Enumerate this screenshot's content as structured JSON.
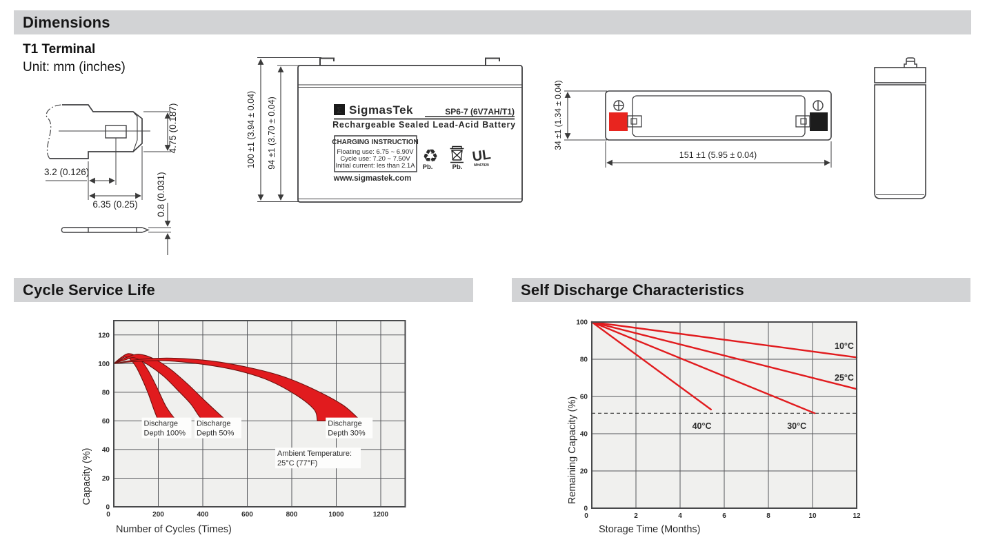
{
  "page": {
    "dimensions_title": "Dimensions",
    "terminal_type": "T1 Terminal",
    "unit_note": "Unit: mm (inches)",
    "cycle_title": "Cycle Service Life",
    "discharge_title": "Self Discharge Characteristics"
  },
  "terminal_drawing": {
    "dim_tab_width": "4.75 (0.187)",
    "dim_hole_offset": "3.2 (0.126)",
    "dim_tab_length": "6.35 (0.25)",
    "dim_tab_thickness": "0.8 (0.031)"
  },
  "front_view": {
    "dim_total_height": "100 ±1 (3.94 ± 0.04)",
    "dim_case_height": "94 ±1 (3.70 ± 0.04)",
    "brand_symbol": "Σ",
    "brand": "SigmasTek",
    "model": "SP6-7 (6V7AH/T1)",
    "battery_type": "Rechargeable Sealed Lead-Acid Battery",
    "charging_title": "CHARGING INSTRUCTION",
    "charging_line1": "Floating use: 6.75 ~ 6.90V",
    "charging_line2": "Cycle use: 7.20 ~ 7.50V",
    "charging_line3": "Initial current: les than 2.1A",
    "recycle_pb": "Pb.",
    "bin_pb": "Pb.",
    "ul_mark": "UL",
    "ul_code": "MH47929",
    "website": "www.sigmastek.com"
  },
  "top_view": {
    "dim_length": "151 ±1 (5.95 ± 0.04)",
    "dim_depth": "34 ±1 (1.34 ± 0.04)"
  },
  "chart_data": [
    {
      "type": "area",
      "title": "Cycle Service Life",
      "xlabel": "Number of Cycles (Times)",
      "ylabel": "Capacity (%)",
      "xlim": [
        0,
        1310
      ],
      "ylim": [
        0,
        130
      ],
      "xticks": [
        0,
        200,
        400,
        600,
        800,
        1000,
        1200
      ],
      "yticks": [
        0,
        20,
        40,
        60,
        80,
        100,
        120
      ],
      "grid": true,
      "legend_position": "none",
      "series": [
        {
          "name": "Discharge Depth 100%",
          "upper": [
            [
              0,
              100
            ],
            [
              35,
              104.5
            ],
            [
              70,
              107
            ],
            [
              115,
              103.5
            ],
            [
              155,
              95
            ],
            [
              195,
              83
            ],
            [
              235,
              70
            ],
            [
              280,
              60.5
            ],
            [
              290,
              60
            ]
          ],
          "lower": [
            [
              0,
              100
            ],
            [
              30,
              103
            ],
            [
              60,
              104.5
            ],
            [
              95,
              99
            ],
            [
              125,
              90
            ],
            [
              155,
              79
            ],
            [
              180,
              68
            ],
            [
              200,
              60
            ]
          ]
        },
        {
          "name": "Discharge Depth 50%",
          "upper": [
            [
              0,
              100
            ],
            [
              60,
              104.5
            ],
            [
              115,
              106.5
            ],
            [
              185,
              103
            ],
            [
              255,
              96
            ],
            [
              330,
              86
            ],
            [
              410,
              74
            ],
            [
              490,
              62.5
            ],
            [
              515,
              60
            ]
          ],
          "lower": [
            [
              0,
              100
            ],
            [
              50,
              102.5
            ],
            [
              95,
              104
            ],
            [
              160,
              98.5
            ],
            [
              225,
              91
            ],
            [
              290,
              81
            ],
            [
              345,
              72
            ],
            [
              380,
              64
            ],
            [
              400,
              60
            ]
          ]
        },
        {
          "name": "Discharge Depth 30%",
          "upper": [
            [
              0,
              100
            ],
            [
              120,
              103
            ],
            [
              260,
              103.8
            ],
            [
              430,
              102
            ],
            [
              600,
              97.5
            ],
            [
              760,
              91
            ],
            [
              900,
              82
            ],
            [
              1030,
              71
            ],
            [
              1110,
              60
            ]
          ],
          "lower": [
            [
              0,
              100
            ],
            [
              100,
              101.5
            ],
            [
              230,
              102
            ],
            [
              400,
              99.5
            ],
            [
              560,
              95
            ],
            [
              700,
              88
            ],
            [
              820,
              78
            ],
            [
              900,
              68
            ],
            [
              915,
              60
            ]
          ]
        }
      ],
      "annotations": [
        {
          "text1": "Discharge",
          "text2": "Depth 100%",
          "x": 135,
          "y": 57,
          "w": 72
        },
        {
          "text1": "Discharge",
          "text2": "Depth 50%",
          "x": 372,
          "y": 57,
          "w": 68
        },
        {
          "text1": "Discharge",
          "text2": "Depth 30%",
          "x": 962,
          "y": 57,
          "w": 68
        },
        {
          "text1": "Ambient Temperature:",
          "text2": "25°C (77°F)",
          "x": 735,
          "y": 36,
          "w": 124
        }
      ]
    },
    {
      "type": "line",
      "title": "Self Discharge Characteristics",
      "xlabel": "Storage Time (Months)",
      "ylabel": "Remaining Capacity (%)",
      "xlim": [
        0,
        12
      ],
      "ylim": [
        0,
        100
      ],
      "xticks": [
        0,
        2,
        4,
        6,
        8,
        10,
        12
      ],
      "yticks": [
        0,
        20,
        40,
        60,
        80,
        100
      ],
      "grid": true,
      "dashed_guide_y": 51,
      "legend_position": "inline-labels",
      "series": [
        {
          "name": "10°C",
          "points": [
            [
              0,
              100
            ],
            [
              12,
              81
            ]
          ],
          "label_x": 11.0,
          "label_y": 87
        },
        {
          "name": "25°C",
          "points": [
            [
              0,
              100
            ],
            [
              12,
              64
            ]
          ],
          "label_x": 11.0,
          "label_y": 70
        },
        {
          "name": "30°C",
          "points": [
            [
              0,
              100
            ],
            [
              10.1,
              51
            ]
          ],
          "label_x": 8.85,
          "label_y": 44
        },
        {
          "name": "40°C",
          "points": [
            [
              0,
              100
            ],
            [
              5.4,
              53
            ]
          ],
          "label_x": 4.55,
          "label_y": 44
        }
      ]
    }
  ],
  "colors": {
    "bar_gray": "#d2d3d5",
    "accent_red": "#e11b1e",
    "terminal_red": "#e8251f",
    "terminal_black": "#1c1c1c",
    "plot_bg": "#f0f0ee",
    "grid": "#55565a",
    "line_art": "#3f3f41"
  }
}
